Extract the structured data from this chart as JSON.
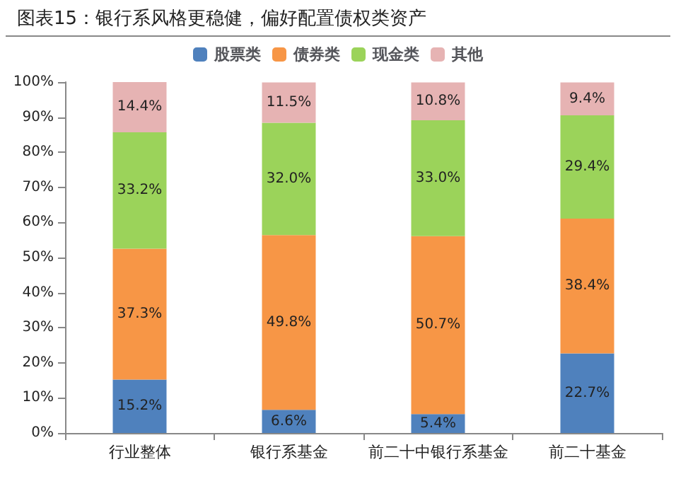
{
  "chart_data": {
    "type": "bar",
    "stacked": true,
    "title": "图表15：银行系风格更稳健，偏好配置债权类资产",
    "categories": [
      "行业整体",
      "银行系基金",
      "前二十中银行系基金",
      "前二十基金"
    ],
    "series": [
      {
        "name": "股票类",
        "color": "#4f81bd",
        "values": [
          15.2,
          6.6,
          5.4,
          22.7
        ],
        "value_labels": [
          "15.2%",
          "6.6%",
          "5.4%",
          "22.7%"
        ]
      },
      {
        "name": "债券类",
        "color": "#f79646",
        "values": [
          37.3,
          49.8,
          50.7,
          38.4
        ],
        "value_labels": [
          "37.3%",
          "49.8%",
          "50.7%",
          "38.4%"
        ]
      },
      {
        "name": "现金类",
        "color": "#9bd35a",
        "values": [
          33.2,
          32.0,
          33.0,
          29.4
        ],
        "value_labels": [
          "33.2%",
          "32.0%",
          "33.0%",
          "29.4%"
        ]
      },
      {
        "name": "其他",
        "color": "#e6b3b3",
        "values": [
          14.4,
          11.5,
          10.8,
          9.4
        ],
        "value_labels": [
          "14.4%",
          "11.5%",
          "10.8%",
          "9.4%"
        ]
      }
    ],
    "ylim": [
      0,
      100
    ],
    "yticks": [
      {
        "value": 0,
        "label": "0%"
      },
      {
        "value": 10,
        "label": "10%"
      },
      {
        "value": 20,
        "label": "20%"
      },
      {
        "value": 30,
        "label": "30%"
      },
      {
        "value": 40,
        "label": "40%"
      },
      {
        "value": 50,
        "label": "50%"
      },
      {
        "value": 60,
        "label": "60%"
      },
      {
        "value": 70,
        "label": "70%"
      },
      {
        "value": 80,
        "label": "80%"
      },
      {
        "value": 90,
        "label": "90%"
      },
      {
        "value": 100,
        "label": "100%"
      }
    ],
    "grid": false,
    "legend": "top"
  }
}
